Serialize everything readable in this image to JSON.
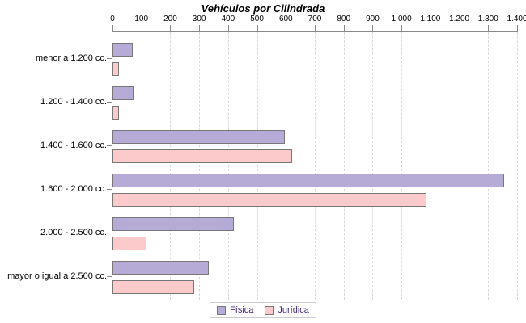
{
  "chart_data": {
    "type": "bar",
    "orientation": "horizontal",
    "title": "Vehículos por Cilindrada",
    "categories": [
      "menor a 1.200 cc.",
      "1.200 - 1.400 cc.",
      "1.400 - 1.600 cc.",
      "1.600 - 2.000 cc.",
      "2.000 - 2.500 cc.",
      "mayor o igual a 2.500 cc."
    ],
    "series": [
      {
        "name": "Física",
        "color": "#b5abd6",
        "values": [
          65,
          67,
          590,
          1350,
          415,
          328
        ]
      },
      {
        "name": "Jurídica",
        "color": "#fccaca",
        "values": [
          17,
          18,
          615,
          1080,
          113,
          278
        ]
      }
    ],
    "x_axis": {
      "min": 0,
      "max": 1400,
      "tick_step": 100,
      "position": "top",
      "tick_labels": [
        "0",
        "100",
        "200",
        "300",
        "400",
        "500",
        "600",
        "700",
        "800",
        "900",
        "1.000",
        "1.100",
        "1.200",
        "1.300",
        "1.400"
      ]
    },
    "grid": "vertical-dashed",
    "legend_position": "bottom"
  },
  "colors": {
    "bar_border": "#777777",
    "axis_line": "#8a8a8a",
    "gridline": "#d9d9d9",
    "legend_text": "#44287c",
    "legend_border": "#cccccc",
    "title_color": "#000000"
  }
}
